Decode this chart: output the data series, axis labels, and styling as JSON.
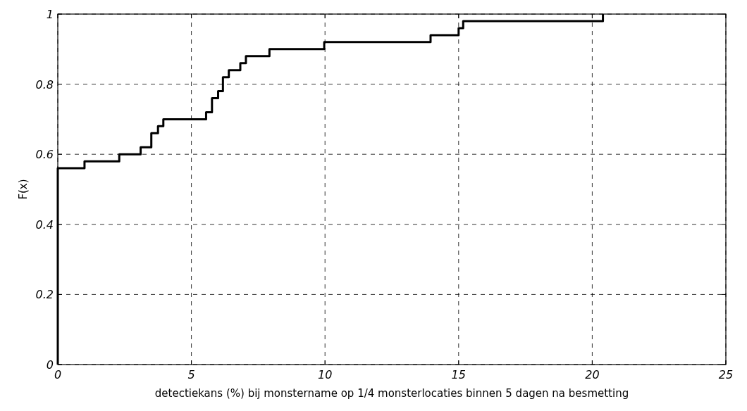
{
  "chart_data": {
    "type": "step",
    "xlabel": "detectiekans (%) bij monstername op 1/4 monsterlocaties binnen 5 dagen na besmetting",
    "ylabel": "F(x)",
    "x": [
      0,
      0,
      1.0,
      2.3,
      3.1,
      3.5,
      3.75,
      3.95,
      5.55,
      5.77,
      6.0,
      6.18,
      6.4,
      6.83,
      7.04,
      7.92,
      9.97,
      13.95,
      15.0,
      15.17,
      20.4
    ],
    "series": [
      {
        "color": "#000000",
        "values": [
          0,
          0.56,
          0.58,
          0.6,
          0.62,
          0.66,
          0.68,
          0.7,
          0.72,
          0.76,
          0.78,
          0.82,
          0.84,
          0.86,
          0.88,
          0.9,
          0.92,
          0.94,
          0.96,
          0.98,
          1.0
        ]
      }
    ],
    "xlim": [
      0,
      25
    ],
    "xticks": [
      0,
      5,
      10,
      15,
      20,
      25
    ],
    "ylim": [
      0,
      1
    ],
    "yticks": [
      0,
      0.2,
      0.4,
      0.6,
      0.8,
      1
    ],
    "grid": true,
    "marker": "none",
    "line_style": "solid"
  }
}
